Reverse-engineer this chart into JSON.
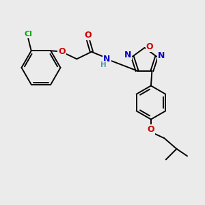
{
  "bg_color": "#ebebeb",
  "atom_colors": {
    "C": "#000000",
    "H": "#4a9e9e",
    "N": "#0000cc",
    "O": "#cc0000",
    "Cl": "#00aa00"
  },
  "bond_color": "#000000",
  "bond_width": 1.4,
  "figsize": [
    3.0,
    3.0
  ],
  "dpi": 100,
  "xlim": [
    0,
    10
  ],
  "ylim": [
    0,
    10
  ]
}
